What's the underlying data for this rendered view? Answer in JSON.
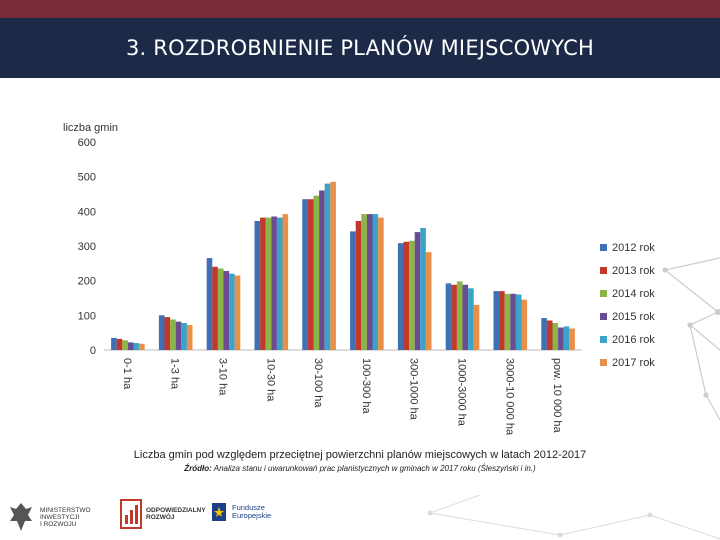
{
  "slide": {
    "title": "3. ROZDROBNIENIE PLANÓW MIEJSCOWYCH",
    "caption": "Liczba gmin pod względem przeciętnej powierzchni planów miejscowych w latach 2012-2017",
    "source_label": "Źródło:",
    "source_text": "Analiza stanu i uwarunkowań prac planistycznych w gminach w 2017 roku (Śleszyński i in.)"
  },
  "logos": {
    "ministry_line1": "Ministerstwo",
    "ministry_line2": "Inwestycji",
    "ministry_line3": "i Rozwoju",
    "odpowiedzialny_line1": "Odpowiedzialny",
    "odpowiedzialny_line2": "Rozwój",
    "fundusze_line1": "Fundusze",
    "fundusze_line2": "Europejskie"
  },
  "colors": {
    "topbar": "#7b2a38",
    "titlebar": "#1c2a47",
    "series": [
      "#3f6fb5",
      "#c0392b",
      "#8db447",
      "#6a4c93",
      "#3aa3c9",
      "#e8904a"
    ]
  },
  "chart_data": {
    "type": "bar",
    "ylabel": "liczba gmin",
    "ylim": [
      0,
      600
    ],
    "yticks": [
      0,
      100,
      200,
      300,
      400,
      500,
      600
    ],
    "grid": false,
    "legend_position": "right",
    "categories": [
      "0-1 ha",
      "1-3 ha",
      "3-10 ha",
      "10-30 ha",
      "30-100 ha",
      "100-300 ha",
      "300-1000 ha",
      "1000-3000 ha",
      "3000-10 000 ha",
      "pow. 10 000 ha"
    ],
    "series": [
      {
        "name": "2012 rok",
        "values": [
          35,
          100,
          265,
          372,
          435,
          342,
          308,
          192,
          170,
          92
        ]
      },
      {
        "name": "2013 rok",
        "values": [
          32,
          95,
          240,
          382,
          435,
          372,
          312,
          188,
          170,
          85
        ]
      },
      {
        "name": "2014 rok",
        "values": [
          28,
          88,
          235,
          382,
          445,
          392,
          315,
          198,
          162,
          78
        ]
      },
      {
        "name": "2015 rok",
        "values": [
          22,
          82,
          228,
          385,
          460,
          392,
          340,
          188,
          162,
          65
        ]
      },
      {
        "name": "2016 rok",
        "values": [
          20,
          78,
          220,
          382,
          480,
          392,
          352,
          178,
          160,
          68
        ]
      },
      {
        "name": "2017 rok",
        "values": [
          18,
          72,
          215,
          392,
          485,
          382,
          282,
          130,
          145,
          62
        ]
      }
    ]
  }
}
